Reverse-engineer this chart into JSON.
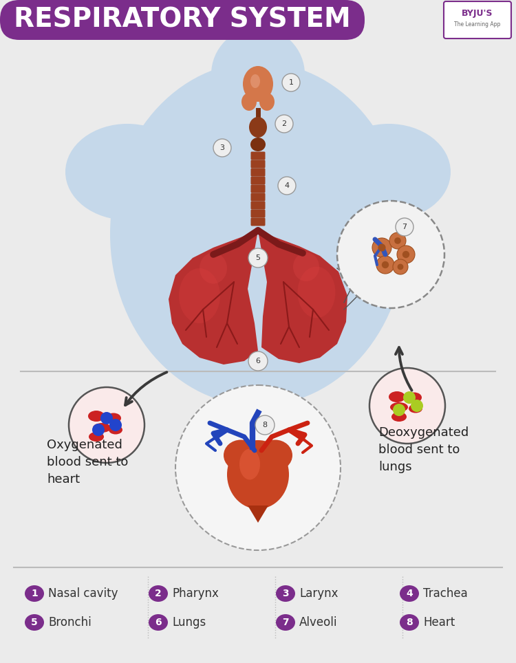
{
  "title": "RESPIRATORY SYSTEM",
  "title_bg_color": "#7B2D8B",
  "title_text_color": "#FFFFFF",
  "bg_color": "#EBEBEB",
  "body_fill": "#C5D8EA",
  "legend_items": [
    {
      "num": "1",
      "label": "Nasal cavity"
    },
    {
      "num": "2",
      "label": "Pharynx"
    },
    {
      "num": "3",
      "label": "Larynx"
    },
    {
      "num": "4",
      "label": "Trachea"
    },
    {
      "num": "5",
      "label": "Bronchi"
    },
    {
      "num": "6",
      "label": "Lungs"
    },
    {
      "num": "7",
      "label": "Alveoli"
    },
    {
      "num": "8",
      "label": "Heart"
    }
  ],
  "legend_circle_color": "#7B2D8B",
  "legend_text_color": "#333333",
  "oxygenated_label": "Oxygenated\nblood sent to\nheart",
  "deoxygenated_label": "Deoxygenated\nblood sent to\nlungs",
  "arrow_color": "#3A3A3A",
  "separator_color": "#BBBBBB",
  "num_circle_fill": "#EEEEEE",
  "num_circle_edge": "#999999",
  "lung_color": "#B83030",
  "lung_dark": "#8B1A1A",
  "trachea_color": "#9B4020",
  "nose_color": "#D4774A"
}
